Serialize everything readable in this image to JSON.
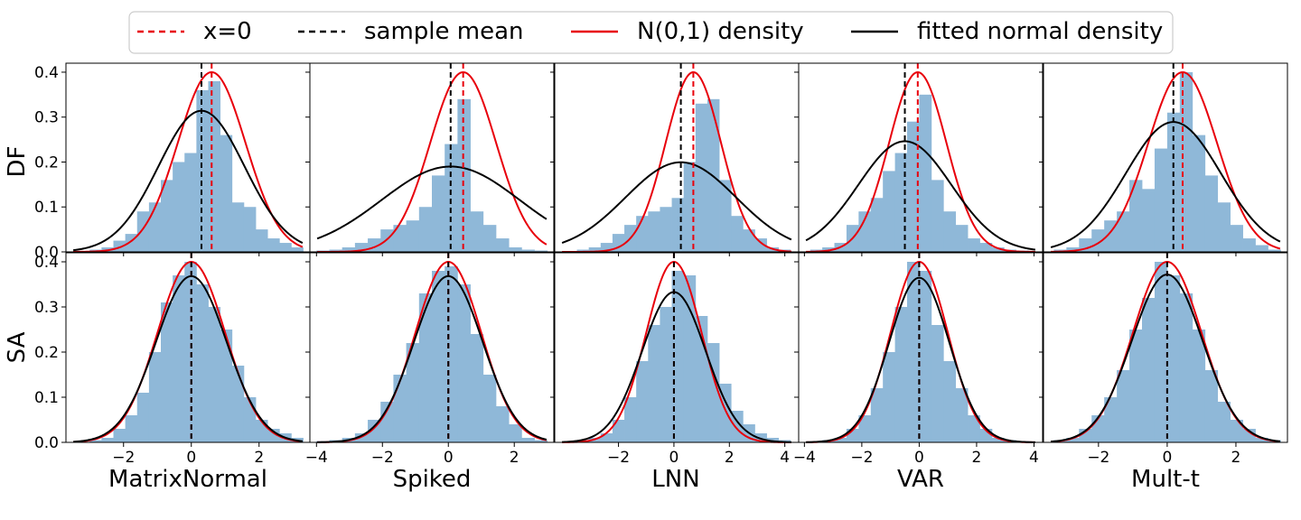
{
  "legend": {
    "items": [
      {
        "label": "x=0",
        "color": "#e8000b",
        "style": "dashed"
      },
      {
        "label": "sample mean",
        "color": "#000000",
        "style": "dashed"
      },
      {
        "label": "N(0,1) density",
        "color": "#e8000b",
        "style": "solid"
      },
      {
        "label": "fitted normal density",
        "color": "#000000",
        "style": "solid"
      }
    ]
  },
  "rows": [
    "DF",
    "SA"
  ],
  "columns": [
    "MatrixNormal",
    "Spiked",
    "LNN",
    "VAR",
    "Mult-t"
  ],
  "colors": {
    "hist": "#8fb8d8",
    "red": "#e8000b",
    "black": "#000000"
  },
  "chart_data": {
    "type": "histogram-grid",
    "ylim": [
      0,
      0.42
    ],
    "yticks": [
      0.0,
      0.1,
      0.2,
      0.3,
      0.4
    ],
    "ytick_labels": [
      "0.0",
      "0.1",
      "0.2",
      "0.3",
      "0.4"
    ],
    "panels": [
      {
        "row": "DF",
        "column": "MatrixNormal",
        "xlim": [
          -3.7,
          3.5
        ],
        "zero_x": 0.6,
        "mean": 0.3,
        "fit_sd": 1.27,
        "red_peak": 0.4,
        "bins": [
          -3.0,
          3.3
        ],
        "heights": [
          0.005,
          0.01,
          0.025,
          0.04,
          0.09,
          0.11,
          0.16,
          0.2,
          0.22,
          0.36,
          0.38,
          0.26,
          0.11,
          0.1,
          0.05,
          0.03,
          0.02,
          0.01
        ]
      },
      {
        "row": "DF",
        "column": "Spiked",
        "xlim": [
          -4.2,
          3.2
        ],
        "zero_x": 0.45,
        "mean": 0.07,
        "fit_sd": 2.1,
        "red_peak": 0.4,
        "bins": [
          -4.0,
          3.0
        ],
        "heights": [
          0.003,
          0.005,
          0.01,
          0.02,
          0.03,
          0.05,
          0.06,
          0.07,
          0.1,
          0.17,
          0.24,
          0.34,
          0.09,
          0.06,
          0.03,
          0.01,
          0.005,
          0.003
        ]
      },
      {
        "row": "DF",
        "column": "LNN",
        "xlim": [
          -4.3,
          4.5
        ],
        "zero_x": 0.7,
        "mean": 0.25,
        "fit_sd": 2.0,
        "red_peak": 0.4,
        "bins": [
          -3.5,
          4.2
        ],
        "heights": [
          0.005,
          0.01,
          0.02,
          0.04,
          0.06,
          0.08,
          0.09,
          0.1,
          0.12,
          0.2,
          0.33,
          0.34,
          0.16,
          0.08,
          0.05,
          0.03,
          0.01,
          0.005
        ]
      },
      {
        "row": "DF",
        "column": "VAR",
        "xlim": [
          -4.2,
          4.3
        ],
        "zero_x": -0.05,
        "mean": -0.5,
        "fit_sd": 1.62,
        "red_peak": 0.4,
        "bins": [
          -3.8,
          3.8
        ],
        "heights": [
          0.005,
          0.01,
          0.02,
          0.06,
          0.09,
          0.12,
          0.18,
          0.22,
          0.29,
          0.35,
          0.16,
          0.09,
          0.06,
          0.03,
          0.02,
          0.01,
          0.005,
          0.003
        ]
      },
      {
        "row": "DF",
        "column": "Mult-t",
        "xlim": [
          -3.6,
          3.5
        ],
        "zero_x": 0.45,
        "mean": 0.18,
        "fit_sd": 1.38,
        "red_peak": 0.4,
        "bins": [
          -3.3,
          3.3
        ],
        "heights": [
          0.005,
          0.01,
          0.03,
          0.05,
          0.07,
          0.09,
          0.16,
          0.14,
          0.23,
          0.31,
          0.4,
          0.26,
          0.17,
          0.11,
          0.06,
          0.03,
          0.015,
          0.005
        ]
      },
      {
        "row": "SA",
        "column": "MatrixNormal",
        "xlim": [
          -3.7,
          3.5
        ],
        "zero_x": 0.0,
        "mean": 0.0,
        "fit_sd": 1.04,
        "red_peak": 0.4,
        "bins": [
          -3.0,
          3.3
        ],
        "heights": [
          0.005,
          0.01,
          0.03,
          0.06,
          0.11,
          0.2,
          0.31,
          0.37,
          0.4,
          0.35,
          0.3,
          0.25,
          0.17,
          0.1,
          0.05,
          0.03,
          0.02,
          0.01
        ]
      },
      {
        "row": "SA",
        "column": "Spiked",
        "xlim": [
          -4.2,
          3.2
        ],
        "zero_x": 0.0,
        "mean": 0.0,
        "fit_sd": 1.04,
        "red_peak": 0.4,
        "bins": [
          -4.0,
          3.0
        ],
        "heights": [
          0.003,
          0.005,
          0.01,
          0.02,
          0.05,
          0.09,
          0.15,
          0.22,
          0.33,
          0.38,
          0.39,
          0.35,
          0.24,
          0.15,
          0.08,
          0.04,
          0.01,
          0.005
        ]
      },
      {
        "row": "SA",
        "column": "LNN",
        "xlim": [
          -4.3,
          4.5
        ],
        "zero_x": 0.0,
        "mean": 0.0,
        "fit_sd": 1.15,
        "red_peak": 0.4,
        "bins": [
          -3.5,
          4.2
        ],
        "heights": [
          0.005,
          0.01,
          0.02,
          0.05,
          0.1,
          0.18,
          0.26,
          0.3,
          0.38,
          0.37,
          0.28,
          0.22,
          0.13,
          0.07,
          0.04,
          0.02,
          0.01,
          0.005
        ]
      },
      {
        "row": "SA",
        "column": "VAR",
        "xlim": [
          -4.2,
          4.3
        ],
        "zero_x": 0.0,
        "mean": 0.0,
        "fit_sd": 1.05,
        "red_peak": 0.4,
        "bins": [
          -3.8,
          3.8
        ],
        "heights": [
          0.003,
          0.005,
          0.01,
          0.03,
          0.06,
          0.12,
          0.2,
          0.3,
          0.4,
          0.38,
          0.26,
          0.18,
          0.12,
          0.06,
          0.03,
          0.01,
          0.005,
          0.003
        ]
      },
      {
        "row": "SA",
        "column": "Mult-t",
        "xlim": [
          -3.6,
          3.5
        ],
        "zero_x": 0.0,
        "mean": 0.0,
        "fit_sd": 1.03,
        "red_peak": 0.4,
        "bins": [
          -3.3,
          3.3
        ],
        "heights": [
          0.005,
          0.01,
          0.03,
          0.06,
          0.1,
          0.16,
          0.25,
          0.32,
          0.4,
          0.37,
          0.33,
          0.25,
          0.16,
          0.09,
          0.05,
          0.03,
          0.01,
          0.005
        ]
      }
    ],
    "xticks": [
      {
        "column": "MatrixNormal",
        "values": [
          -2,
          0,
          2
        ],
        "labels": [
          "−2",
          "0",
          "2"
        ]
      },
      {
        "column": "Spiked",
        "values": [
          -4,
          -2,
          0,
          2
        ],
        "labels": [
          "−4",
          "−2",
          "0",
          "2"
        ]
      },
      {
        "column": "LNN",
        "values": [
          -2,
          0,
          2,
          4
        ],
        "labels": [
          "−2",
          "0",
          "2",
          "4"
        ]
      },
      {
        "column": "VAR",
        "values": [
          -4,
          -2,
          0,
          2,
          4
        ],
        "labels": [
          "−4",
          "−2",
          "0",
          "2",
          "4"
        ]
      },
      {
        "column": "Mult-t",
        "values": [
          -2,
          0,
          2
        ],
        "labels": [
          "−2",
          "0",
          "2"
        ]
      }
    ]
  }
}
